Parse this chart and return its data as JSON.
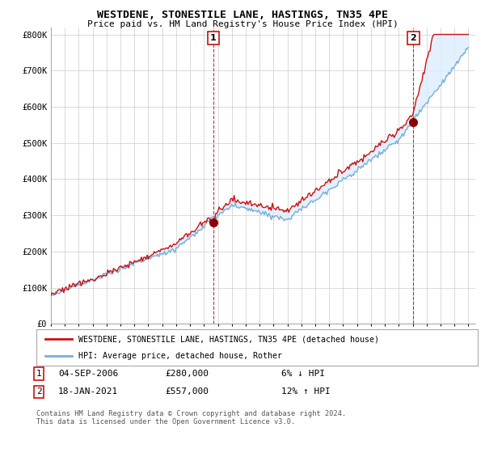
{
  "title": "WESTDENE, STONESTILE LANE, HASTINGS, TN35 4PE",
  "subtitle": "Price paid vs. HM Land Registry's House Price Index (HPI)",
  "xlim_start": 1995.0,
  "xlim_end": 2025.5,
  "ylim": [
    0,
    820000
  ],
  "yticks": [
    0,
    100000,
    200000,
    300000,
    400000,
    500000,
    600000,
    700000,
    800000
  ],
  "ytick_labels": [
    "£0",
    "£100K",
    "£200K",
    "£300K",
    "£400K",
    "£500K",
    "£600K",
    "£700K",
    "£800K"
  ],
  "hpi_color": "#7ab0d4",
  "price_color": "#cc1111",
  "fill_color": "#ddeeff",
  "sale1_x": 2006.67,
  "sale1_y": 280000,
  "sale1_label": "1",
  "sale2_x": 2021.05,
  "sale2_y": 557000,
  "sale2_label": "2",
  "vline_color": "#cc1111",
  "dot_color": "#8b0000",
  "legend_line1": "WESTDENE, STONESTILE LANE, HASTINGS, TN35 4PE (detached house)",
  "legend_line2": "HPI: Average price, detached house, Rother",
  "table_row1": [
    "1",
    "04-SEP-2006",
    "£280,000",
    "6% ↓ HPI"
  ],
  "table_row2": [
    "2",
    "18-JAN-2021",
    "£557,000",
    "12% ↑ HPI"
  ],
  "footnote": "Contains HM Land Registry data © Crown copyright and database right 2024.\nThis data is licensed under the Open Government Licence v3.0.",
  "background_color": "#ffffff",
  "grid_color": "#cccccc"
}
